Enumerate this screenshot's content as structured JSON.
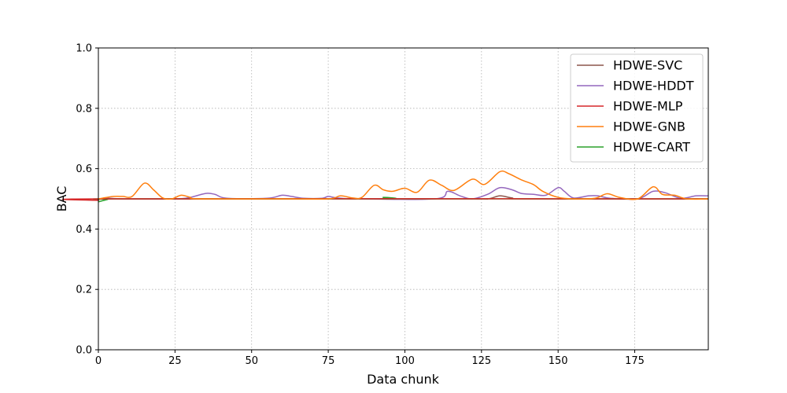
{
  "chart_data": {
    "type": "line",
    "title": "",
    "xlabel": "Data chunk",
    "ylabel": "BAC",
    "xlim": [
      0,
      199
    ],
    "ylim": [
      0.0,
      1.0
    ],
    "xticks": [
      0,
      25,
      50,
      75,
      100,
      125,
      150,
      175
    ],
    "yticks": [
      0.0,
      0.2,
      0.4,
      0.6,
      0.8,
      1.0
    ],
    "xtick_labels": [
      "0",
      "25",
      "50",
      "75",
      "100",
      "125",
      "150",
      "175"
    ],
    "ytick_labels": [
      "0.0",
      "0.2",
      "0.4",
      "0.6",
      "0.8",
      "1.0"
    ],
    "grid": true,
    "legend_position": "top-right",
    "series": [
      {
        "name": "HDWE-SVC",
        "color": "#8c564b",
        "points": [
          [
            0,
            0.495
          ],
          [
            5,
            0.5
          ],
          [
            60,
            0.5
          ],
          [
            120,
            0.5
          ],
          [
            127,
            0.5
          ],
          [
            131,
            0.51
          ],
          [
            135,
            0.503
          ],
          [
            140,
            0.5
          ],
          [
            199,
            0.5
          ]
        ]
      },
      {
        "name": "HDWE-HDDT",
        "color": "#9467bd",
        "points": [
          [
            0,
            0.498
          ],
          [
            3,
            0.502
          ],
          [
            8,
            0.5
          ],
          [
            25,
            0.5
          ],
          [
            30,
            0.505
          ],
          [
            35,
            0.518
          ],
          [
            38,
            0.515
          ],
          [
            42,
            0.502
          ],
          [
            55,
            0.502
          ],
          [
            60,
            0.512
          ],
          [
            63,
            0.508
          ],
          [
            67,
            0.502
          ],
          [
            73,
            0.502
          ],
          [
            75,
            0.508
          ],
          [
            78,
            0.503
          ],
          [
            85,
            0.5
          ],
          [
            110,
            0.5
          ],
          [
            114,
            0.525
          ],
          [
            118,
            0.51
          ],
          [
            122,
            0.5
          ],
          [
            127,
            0.515
          ],
          [
            131,
            0.537
          ],
          [
            135,
            0.53
          ],
          [
            138,
            0.518
          ],
          [
            142,
            0.515
          ],
          [
            146,
            0.512
          ],
          [
            150,
            0.537
          ],
          [
            152,
            0.525
          ],
          [
            155,
            0.503
          ],
          [
            160,
            0.51
          ],
          [
            163,
            0.51
          ],
          [
            167,
            0.502
          ],
          [
            176,
            0.5
          ],
          [
            181,
            0.525
          ],
          [
            185,
            0.52
          ],
          [
            190,
            0.502
          ],
          [
            195,
            0.51
          ],
          [
            199,
            0.51
          ]
        ]
      },
      {
        "name": "HDWE-MLP",
        "color": "#d62728",
        "points": [
          [
            0,
            0.495
          ],
          [
            4,
            0.5
          ],
          [
            199,
            0.5
          ]
        ]
      },
      {
        "name": "HDWE-GNB",
        "color": "#ff7f0e",
        "points": [
          [
            0,
            0.5
          ],
          [
            5,
            0.508
          ],
          [
            8,
            0.508
          ],
          [
            11,
            0.508
          ],
          [
            15,
            0.552
          ],
          [
            18,
            0.53
          ],
          [
            21,
            0.503
          ],
          [
            24,
            0.5
          ],
          [
            27,
            0.512
          ],
          [
            30,
            0.505
          ],
          [
            33,
            0.5
          ],
          [
            60,
            0.5
          ],
          [
            75,
            0.5
          ],
          [
            79,
            0.51
          ],
          [
            83,
            0.503
          ],
          [
            86,
            0.505
          ],
          [
            90,
            0.545
          ],
          [
            93,
            0.53
          ],
          [
            96,
            0.525
          ],
          [
            100,
            0.535
          ],
          [
            104,
            0.522
          ],
          [
            108,
            0.562
          ],
          [
            112,
            0.545
          ],
          [
            116,
            0.528
          ],
          [
            122,
            0.565
          ],
          [
            126,
            0.548
          ],
          [
            131,
            0.59
          ],
          [
            134,
            0.583
          ],
          [
            138,
            0.563
          ],
          [
            142,
            0.547
          ],
          [
            145,
            0.525
          ],
          [
            150,
            0.505
          ],
          [
            155,
            0.5
          ],
          [
            162,
            0.502
          ],
          [
            166,
            0.517
          ],
          [
            170,
            0.505
          ],
          [
            176,
            0.5
          ],
          [
            181,
            0.54
          ],
          [
            184,
            0.515
          ],
          [
            188,
            0.512
          ],
          [
            192,
            0.5
          ],
          [
            199,
            0.5
          ]
        ]
      },
      {
        "name": "HDWE-CART",
        "color": "#2ca02c",
        "points": [
          [
            0,
            0.49
          ],
          [
            3,
            0.498
          ],
          [
            5,
            0.5
          ],
          [
            88,
            0.5
          ],
          [
            93,
            0.505
          ],
          [
            97,
            0.502
          ],
          [
            100,
            0.5
          ],
          [
            199,
            0.5
          ]
        ]
      }
    ]
  }
}
